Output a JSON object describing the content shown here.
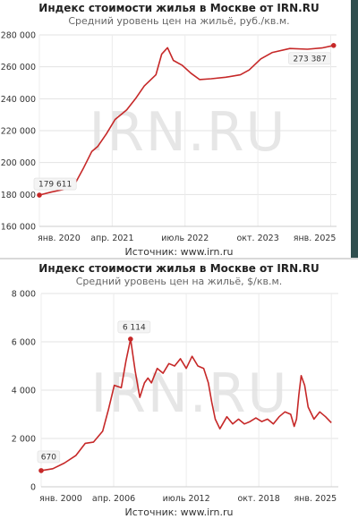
{
  "watermark": "IRN.RU",
  "chart_data": [
    {
      "type": "line",
      "title": "Индекс стоимости жилья в Москве от IRN.RU",
      "subtitle": "Средний уровень цен на жильё, руб./кв.м.",
      "source": "Источник: www.irn.ru",
      "ylim": [
        160000,
        280000
      ],
      "y_ticks": [
        "160 000",
        "180 000",
        "200 000",
        "220 000",
        "240 000",
        "260 000",
        "280 000"
      ],
      "y_tick_values": [
        160000,
        180000,
        200000,
        220000,
        240000,
        260000,
        280000
      ],
      "xlim": [
        2020.0,
        2025.1
      ],
      "x_ticks": [
        "янв. 2020",
        "апр. 2021",
        "июль 2022",
        "окт. 2023",
        "янв. 2025"
      ],
      "x_tick_values": [
        2020.0,
        2021.25,
        2022.5,
        2023.75,
        2025.0
      ],
      "color": "#c62828",
      "grid": true,
      "x": [
        2020.0,
        2020.2,
        2020.4,
        2020.6,
        2020.75,
        2020.9,
        2021.0,
        2021.15,
        2021.3,
        2021.5,
        2021.65,
        2021.8,
        2022.0,
        2022.1,
        2022.2,
        2022.3,
        2022.45,
        2022.6,
        2022.75,
        2022.95,
        2023.2,
        2023.45,
        2023.6,
        2023.8,
        2024.0,
        2024.3,
        2024.6,
        2024.85,
        2025.05
      ],
      "values": [
        179611,
        181500,
        183000,
        186000,
        196000,
        207000,
        210000,
        218000,
        227000,
        233000,
        240000,
        248000,
        255000,
        268000,
        272000,
        264000,
        261000,
        256000,
        252000,
        252500,
        253500,
        255000,
        258000,
        265000,
        269000,
        271500,
        271000,
        271800,
        273387
      ],
      "annotations": [
        {
          "x": 2020.0,
          "y": 179611,
          "label": "179 611"
        },
        {
          "x": 2025.05,
          "y": 273387,
          "label": "273 387"
        }
      ]
    },
    {
      "type": "line",
      "title": "Индекс стоимости жилья в Москве от IRN.RU",
      "subtitle": "Средний уровень цен на жильё, $/кв.м.",
      "source": "Источник: www.irn.ru",
      "ylim": [
        0,
        8000
      ],
      "y_ticks": [
        "0",
        "2 000",
        "4 000",
        "6 000",
        "8 000"
      ],
      "y_tick_values": [
        0,
        2000,
        4000,
        6000,
        8000
      ],
      "xlim": [
        2000.0,
        2025.6
      ],
      "x_ticks": [
        "янв. 2000",
        "апр. 2006",
        "июль 2012",
        "окт. 2018",
        "янв. 2025"
      ],
      "x_tick_values": [
        2000.0,
        2006.25,
        2012.5,
        2018.75,
        2025.0
      ],
      "color": "#c62828",
      "grid": true,
      "x": [
        2000.0,
        2001.0,
        2002.0,
        2003.0,
        2003.8,
        2004.5,
        2005.3,
        2005.8,
        2006.3,
        2006.9,
        2007.3,
        2007.7,
        2008.1,
        2008.5,
        2008.9,
        2009.2,
        2009.5,
        2010.0,
        2010.5,
        2011.0,
        2011.5,
        2012.0,
        2012.5,
        2013.0,
        2013.5,
        2014.0,
        2014.4,
        2014.7,
        2015.0,
        2015.4,
        2016.0,
        2016.5,
        2017.0,
        2017.5,
        2018.0,
        2018.5,
        2019.0,
        2019.5,
        2020.0,
        2020.5,
        2021.0,
        2021.5,
        2021.8,
        2022.0,
        2022.2,
        2022.4,
        2022.7,
        2023.0,
        2023.5,
        2024.0,
        2024.5,
        2025.0
      ],
      "values": [
        670,
        750,
        980,
        1300,
        1800,
        1850,
        2300,
        3200,
        4200,
        4100,
        5200,
        6114,
        4800,
        3700,
        4300,
        4500,
        4300,
        4900,
        4700,
        5100,
        5000,
        5300,
        4900,
        5400,
        5000,
        4900,
        4300,
        3500,
        2800,
        2400,
        2900,
        2600,
        2800,
        2600,
        2700,
        2850,
        2700,
        2800,
        2600,
        2900,
        3100,
        3000,
        2500,
        2800,
        3800,
        4600,
        4200,
        3300,
        2800,
        3100,
        2900,
        2650
      ],
      "annotations": [
        {
          "x": 2000.0,
          "y": 670,
          "label": "670"
        },
        {
          "x": 2007.7,
          "y": 6114,
          "label": "6 114"
        }
      ]
    }
  ]
}
